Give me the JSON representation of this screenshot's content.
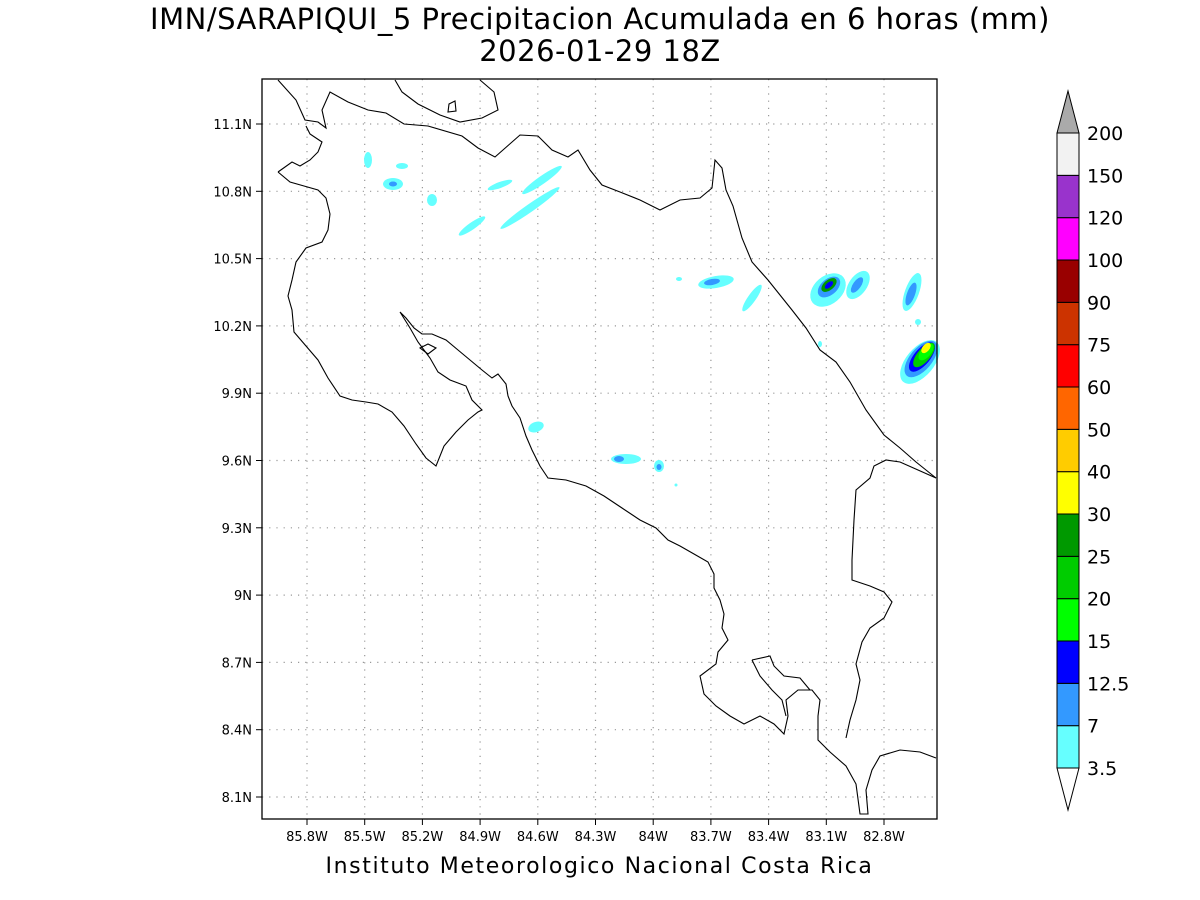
{
  "title": {
    "line1": "IMN/SARAPIQUI_5 Precipitacion Acumulada en 6 horas (mm)",
    "line2": "2026-01-29 18Z"
  },
  "footer": "Instituto Meteorologico Nacional Costa Rica",
  "map": {
    "lon_range": [
      -86.0,
      -83.0
    ],
    "lat_range": [
      7.9,
      11.3
    ],
    "grid": "dotted",
    "lat_ticks": [
      {
        "value": 11.1,
        "label": "11.1N"
      },
      {
        "value": 10.8,
        "label": "10.8N"
      },
      {
        "value": 10.5,
        "label": "10.5N"
      },
      {
        "value": 10.2,
        "label": "10.2N"
      },
      {
        "value": 9.9,
        "label": "9.9N"
      },
      {
        "value": 9.6,
        "label": "9.6N"
      },
      {
        "value": 9.3,
        "label": "9.3N"
      },
      {
        "value": 9.0,
        "label": "9N"
      },
      {
        "value": 8.7,
        "label": "8.7N"
      },
      {
        "value": 8.4,
        "label": "8.4N"
      },
      {
        "value": 8.1,
        "label": "8.1N"
      }
    ],
    "lon_ticks": [
      {
        "value": -85.8,
        "label": "85.8W"
      },
      {
        "value": -85.5,
        "label": "85.5W"
      },
      {
        "value": -85.2,
        "label": "85.2W"
      },
      {
        "value": -84.9,
        "label": "84.9W"
      },
      {
        "value": -84.6,
        "label": "84.6W"
      },
      {
        "value": -84.3,
        "label": "84.3W"
      },
      {
        "value": -84.0,
        "label": "84W"
      },
      {
        "value": -83.7,
        "label": "83.7W"
      },
      {
        "value": -83.4,
        "label": "83.4W"
      },
      {
        "value": -83.1,
        "label": "83.1W"
      },
      {
        "value": -82.8,
        "label": "82.8W"
      }
    ]
  },
  "colorbar": {
    "levels": [
      {
        "label": "3.5",
        "color": "#66ffff"
      },
      {
        "label": "7",
        "color": "#3399ff"
      },
      {
        "label": "12.5",
        "color": "#0000ff"
      },
      {
        "label": "15",
        "color": "#00ff00"
      },
      {
        "label": "20",
        "color": "#00cc00"
      },
      {
        "label": "25",
        "color": "#009900"
      },
      {
        "label": "30",
        "color": "#ffff00"
      },
      {
        "label": "40",
        "color": "#ffcc00"
      },
      {
        "label": "50",
        "color": "#ff6600"
      },
      {
        "label": "60",
        "color": "#ff0000"
      },
      {
        "label": "75",
        "color": "#cc3300"
      },
      {
        "label": "90",
        "color": "#990000"
      },
      {
        "label": "100",
        "color": "#ff00ff"
      },
      {
        "label": "120",
        "color": "#9933cc"
      },
      {
        "label": "150",
        "color": "#f2f2f2"
      },
      {
        "label": "200",
        "color": "#aaaaaa"
      }
    ],
    "under_color": "#ffffff",
    "over_color": "#aaaaaa"
  }
}
